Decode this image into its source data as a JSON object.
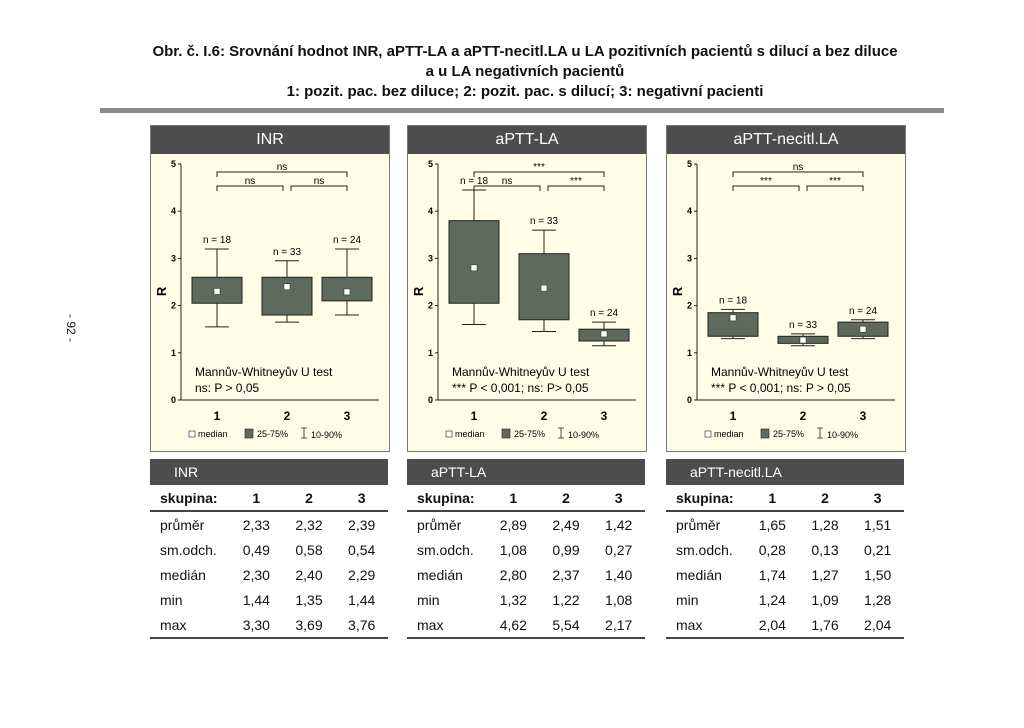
{
  "page": {
    "title_lines": [
      "Obr. č. I.6: Srovnání hodnot INR, aPTT-LA a aPTT-necitl.LA u LA pozitivních pacientů s dilucí a bez diluce",
      "a u LA negativních pacientů",
      "1: pozit. pac. bez diluce; 2: pozit. pac. s dilucí; 3: negativní pacienti"
    ],
    "side_number": "- 92 -"
  },
  "colors": {
    "box_fill": "#5e6b5c",
    "panel_bg": "#fffde6",
    "header_bg": "#4d4d4d"
  },
  "chart_data": [
    {
      "type": "box",
      "title": "INR",
      "ylabel": "R",
      "ylim": [
        0,
        5
      ],
      "yticks": [
        "0",
        "1",
        "2",
        "3",
        "4",
        "5"
      ],
      "categories": [
        "1",
        "2",
        "3"
      ],
      "boxes": [
        {
          "whisker_low": 1.55,
          "q1": 2.05,
          "median": 2.3,
          "q3": 2.6,
          "whisker_high": 3.2
        },
        {
          "whisker_low": 1.65,
          "q1": 1.8,
          "median": 2.4,
          "q3": 2.6,
          "whisker_high": 2.95
        },
        {
          "whisker_low": 1.8,
          "q1": 2.1,
          "median": 2.29,
          "q3": 2.6,
          "whisker_high": 3.2
        }
      ],
      "n_labels": [
        "n = 18",
        "n = 33",
        "n = 24"
      ],
      "significance": [
        {
          "from": 1,
          "to": 3,
          "label": "ns"
        },
        {
          "from": 1,
          "to": 2,
          "label": "ns"
        },
        {
          "from": 2,
          "to": 3,
          "label": "ns"
        }
      ],
      "annotation": [
        "Mannův-Whitneyův U test",
        "ns: P > 0,05"
      ],
      "legend": [
        "median",
        "25-75%",
        "10-90%"
      ]
    },
    {
      "type": "box",
      "title": "aPTT-LA",
      "ylabel": "R",
      "ylim": [
        0,
        5
      ],
      "yticks": [
        "0",
        "1",
        "2",
        "3",
        "4",
        "5"
      ],
      "categories": [
        "1",
        "2",
        "3"
      ],
      "boxes": [
        {
          "whisker_low": 1.6,
          "q1": 2.05,
          "median": 2.8,
          "q3": 3.8,
          "whisker_high": 4.45
        },
        {
          "whisker_low": 1.45,
          "q1": 1.7,
          "median": 2.37,
          "q3": 3.1,
          "whisker_high": 3.6
        },
        {
          "whisker_low": 1.15,
          "q1": 1.25,
          "median": 1.4,
          "q3": 1.5,
          "whisker_high": 1.65
        }
      ],
      "n_labels": [
        "n = 18",
        "n = 33",
        "n = 24"
      ],
      "significance": [
        {
          "from": 1,
          "to": 3,
          "label": "***"
        },
        {
          "from": 1,
          "to": 2,
          "label": "ns"
        },
        {
          "from": 2,
          "to": 3,
          "label": "***"
        }
      ],
      "annotation": [
        "Mannův-Whitneyův U test",
        "*** P < 0,001; ns: P> 0,05"
      ],
      "legend": [
        "median",
        "25-75%",
        "10-90%"
      ]
    },
    {
      "type": "box",
      "title": "aPTT-necitl.LA",
      "ylabel": "R",
      "ylim": [
        0,
        5
      ],
      "yticks": [
        "0",
        "1",
        "2",
        "3",
        "4",
        "5"
      ],
      "categories": [
        "1",
        "2",
        "3"
      ],
      "boxes": [
        {
          "whisker_low": 1.3,
          "q1": 1.35,
          "median": 1.74,
          "q3": 1.85,
          "whisker_high": 1.92
        },
        {
          "whisker_low": 1.15,
          "q1": 1.2,
          "median": 1.27,
          "q3": 1.35,
          "whisker_high": 1.4
        },
        {
          "whisker_low": 1.3,
          "q1": 1.35,
          "median": 1.5,
          "q3": 1.65,
          "whisker_high": 1.7
        }
      ],
      "n_labels": [
        "n = 18",
        "n = 33",
        "n = 24"
      ],
      "significance": [
        {
          "from": 1,
          "to": 3,
          "label": "ns"
        },
        {
          "from": 1,
          "to": 2,
          "label": "***"
        },
        {
          "from": 2,
          "to": 3,
          "label": "***"
        }
      ],
      "annotation": [
        "Mannův-Whitneyův U test",
        "*** P < 0,001; ns: P > 0,05"
      ],
      "legend": [
        "median",
        "25-75%",
        "10-90%"
      ]
    }
  ],
  "tables": [
    {
      "title": "INR",
      "header": [
        "skupina:",
        "1",
        "2",
        "3"
      ],
      "rows": [
        [
          "průměr",
          "2,33",
          "2,32",
          "2,39"
        ],
        [
          "sm.odch.",
          "0,49",
          "0,58",
          "0,54"
        ],
        [
          "medián",
          "2,30",
          "2,40",
          "2,29"
        ],
        [
          "min",
          "1,44",
          "1,35",
          "1,44"
        ],
        [
          "max",
          "3,30",
          "3,69",
          "3,76"
        ]
      ]
    },
    {
      "title": "aPTT-LA",
      "header": [
        "skupina:",
        "1",
        "2",
        "3"
      ],
      "rows": [
        [
          "průměr",
          "2,89",
          "2,49",
          "1,42"
        ],
        [
          "sm.odch.",
          "1,08",
          "0,99",
          "0,27"
        ],
        [
          "medián",
          "2,80",
          "2,37",
          "1,40"
        ],
        [
          "min",
          "1,32",
          "1,22",
          "1,08"
        ],
        [
          "max",
          "4,62",
          "5,54",
          "2,17"
        ]
      ]
    },
    {
      "title": "aPTT-necitl.LA",
      "header": [
        "skupina:",
        "1",
        "2",
        "3"
      ],
      "rows": [
        [
          "průměr",
          "1,65",
          "1,28",
          "1,51"
        ],
        [
          "sm.odch.",
          "0,28",
          "0,13",
          "0,21"
        ],
        [
          "medián",
          "1,74",
          "1,27",
          "1,50"
        ],
        [
          "min",
          "1,24",
          "1,09",
          "1,28"
        ],
        [
          "max",
          "2,04",
          "1,76",
          "2,04"
        ]
      ]
    }
  ]
}
